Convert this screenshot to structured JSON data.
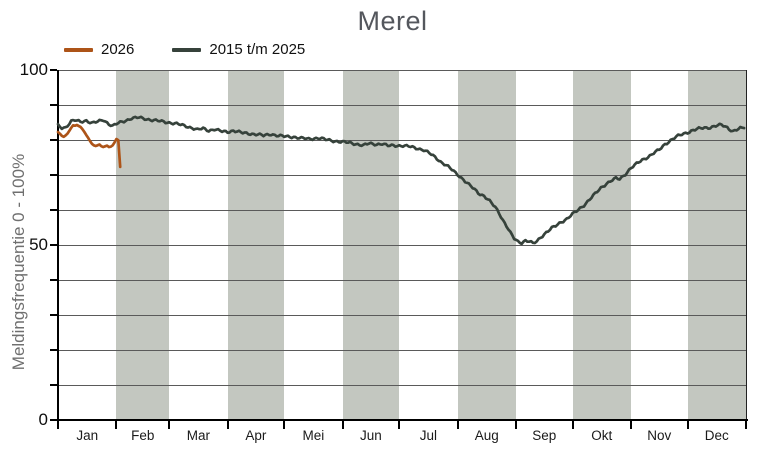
{
  "title": "Merel",
  "legend": {
    "items": [
      {
        "label": "2026",
        "color": "#ad5418"
      },
      {
        "label": "2015 t/m 2025",
        "color": "#36423b"
      }
    ]
  },
  "y_axis": {
    "label": "Meldingsfrequentie 0 - 100%",
    "tick_labels": [
      "100",
      "50",
      "0"
    ],
    "tick_values": [
      100,
      50,
      0
    ]
  },
  "x_axis": {
    "months": [
      "Jan",
      "Feb",
      "Mar",
      "Apr",
      "Mei",
      "Jun",
      "Jul",
      "Aug",
      "Sep",
      "Okt",
      "Nov",
      "Dec"
    ]
  },
  "colors": {
    "band": "#c3c7c0",
    "gridline": "#5a5a5a",
    "title": "#54575d",
    "current_year": "#ad5418",
    "reference": "#36423b"
  },
  "chart_data": {
    "type": "line",
    "title": "Merel",
    "xlabel": "",
    "ylabel": "Meldingsfrequentie 0 - 100%",
    "ylim": [
      0,
      100
    ],
    "grid": "horizontal, every 10",
    "legend_position": "top-left",
    "x_unit": "day-of-year (Jan-Dec)",
    "month_days": [
      31,
      28,
      31,
      30,
      31,
      30,
      31,
      31,
      30,
      31,
      30,
      31
    ],
    "shaded_month_indexes": [
      1,
      3,
      5,
      7,
      9,
      11
    ],
    "series": [
      {
        "name": "2015 t/m 2025",
        "color": "#36423b",
        "interpolate_daily": true,
        "points_day_value": [
          [
            1,
            84.2
          ],
          [
            3,
            83.5
          ],
          [
            5,
            83.6
          ],
          [
            8,
            85.3
          ],
          [
            10,
            85.6
          ],
          [
            13,
            85.2
          ],
          [
            16,
            85.6
          ],
          [
            19,
            84.8
          ],
          [
            22,
            85.2
          ],
          [
            25,
            85.8
          ],
          [
            28,
            84.6
          ],
          [
            30,
            84.0
          ],
          [
            33,
            84.8
          ],
          [
            36,
            85.4
          ],
          [
            40,
            86.2
          ],
          [
            44,
            86.4
          ],
          [
            48,
            86.0
          ],
          [
            52,
            85.6
          ],
          [
            56,
            85.3
          ],
          [
            60,
            85.0
          ],
          [
            64,
            84.6
          ],
          [
            68,
            84.1
          ],
          [
            72,
            83.5
          ],
          [
            75,
            82.9
          ],
          [
            78,
            83.3
          ],
          [
            81,
            82.7
          ],
          [
            84,
            83.1
          ],
          [
            88,
            82.4
          ],
          [
            91,
            82.3
          ],
          [
            94,
            82.7
          ],
          [
            99,
            82.0
          ],
          [
            103,
            81.8
          ],
          [
            107,
            81.6
          ],
          [
            110,
            81.2
          ],
          [
            114,
            81.7
          ],
          [
            118,
            81.2
          ],
          [
            121,
            81.0
          ],
          [
            126,
            80.9
          ],
          [
            130,
            80.5
          ],
          [
            134,
            80.3
          ],
          [
            139,
            80.6
          ],
          [
            143,
            80.1
          ],
          [
            147,
            79.8
          ],
          [
            152,
            79.4
          ],
          [
            156,
            79.2
          ],
          [
            160,
            78.8
          ],
          [
            163,
            78.4
          ],
          [
            166,
            79.0
          ],
          [
            170,
            78.8
          ],
          [
            173,
            78.9
          ],
          [
            176,
            78.3
          ],
          [
            179,
            78.5
          ],
          [
            182,
            78.4
          ],
          [
            186,
            78.2
          ],
          [
            189,
            78.0
          ],
          [
            192,
            77.6
          ],
          [
            195,
            77.1
          ],
          [
            198,
            76.2
          ],
          [
            201,
            75.2
          ],
          [
            204,
            73.8
          ],
          [
            207,
            72.7
          ],
          [
            210,
            71.5
          ],
          [
            213,
            70.2
          ],
          [
            216,
            68.7
          ],
          [
            219,
            67.2
          ],
          [
            222,
            65.9
          ],
          [
            224,
            64.9
          ],
          [
            227,
            64.0
          ],
          [
            230,
            62.5
          ],
          [
            233,
            60.8
          ],
          [
            235,
            59.2
          ],
          [
            237,
            57.2
          ],
          [
            239,
            55.4
          ],
          [
            241,
            53.4
          ],
          [
            243,
            51.8
          ],
          [
            245,
            51.0
          ],
          [
            247,
            50.7
          ],
          [
            249,
            51.3
          ],
          [
            251,
            51.0
          ],
          [
            253,
            50.4
          ],
          [
            255,
            51.0
          ],
          [
            257,
            52.2
          ],
          [
            260,
            53.6
          ],
          [
            263,
            54.8
          ],
          [
            265,
            55.4
          ],
          [
            268,
            56.6
          ],
          [
            271,
            57.5
          ],
          [
            274,
            58.8
          ],
          [
            277,
            60.0
          ],
          [
            280,
            61.4
          ],
          [
            283,
            63.0
          ],
          [
            286,
            64.6
          ],
          [
            289,
            66.3
          ],
          [
            292,
            67.6
          ],
          [
            295,
            68.5
          ],
          [
            297,
            69.0
          ],
          [
            299,
            68.8
          ],
          [
            302,
            70.3
          ],
          [
            305,
            72.0
          ],
          [
            308,
            73.2
          ],
          [
            311,
            74.3
          ],
          [
            314,
            75.2
          ],
          [
            317,
            76.2
          ],
          [
            320,
            77.2
          ],
          [
            323,
            78.8
          ],
          [
            326,
            79.9
          ],
          [
            329,
            80.9
          ],
          [
            332,
            81.6
          ],
          [
            335,
            82.2
          ],
          [
            338,
            82.8
          ],
          [
            341,
            83.2
          ],
          [
            344,
            83.5
          ],
          [
            347,
            83.6
          ],
          [
            350,
            84.0
          ],
          [
            353,
            84.3
          ],
          [
            356,
            83.6
          ],
          [
            359,
            82.5
          ],
          [
            361,
            82.9
          ],
          [
            363,
            83.3
          ],
          [
            365,
            83.4
          ]
        ]
      },
      {
        "name": "2026",
        "color": "#ad5418",
        "interpolate_daily": false,
        "points_day_value": [
          [
            1,
            82.3
          ],
          [
            2,
            81.8
          ],
          [
            3,
            81.2
          ],
          [
            4,
            80.9
          ],
          [
            5,
            81.3
          ],
          [
            6,
            81.8
          ],
          [
            7,
            82.6
          ],
          [
            8,
            83.5
          ],
          [
            9,
            84.2
          ],
          [
            10,
            84.1
          ],
          [
            11,
            84.3
          ],
          [
            12,
            84.0
          ],
          [
            13,
            83.7
          ],
          [
            14,
            83.1
          ],
          [
            15,
            82.3
          ],
          [
            16,
            81.4
          ],
          [
            17,
            80.6
          ],
          [
            18,
            79.7
          ],
          [
            19,
            78.9
          ],
          [
            20,
            78.5
          ],
          [
            21,
            78.3
          ],
          [
            22,
            78.5
          ],
          [
            23,
            78.7
          ],
          [
            24,
            78.2
          ],
          [
            25,
            78.0
          ],
          [
            26,
            78.2
          ],
          [
            27,
            78.4
          ],
          [
            28,
            78.0
          ],
          [
            29,
            78.1
          ],
          [
            30,
            78.5
          ],
          [
            31,
            79.3
          ],
          [
            32,
            80.3
          ],
          [
            33,
            79.9
          ],
          [
            34,
            72.3
          ]
        ]
      }
    ]
  }
}
